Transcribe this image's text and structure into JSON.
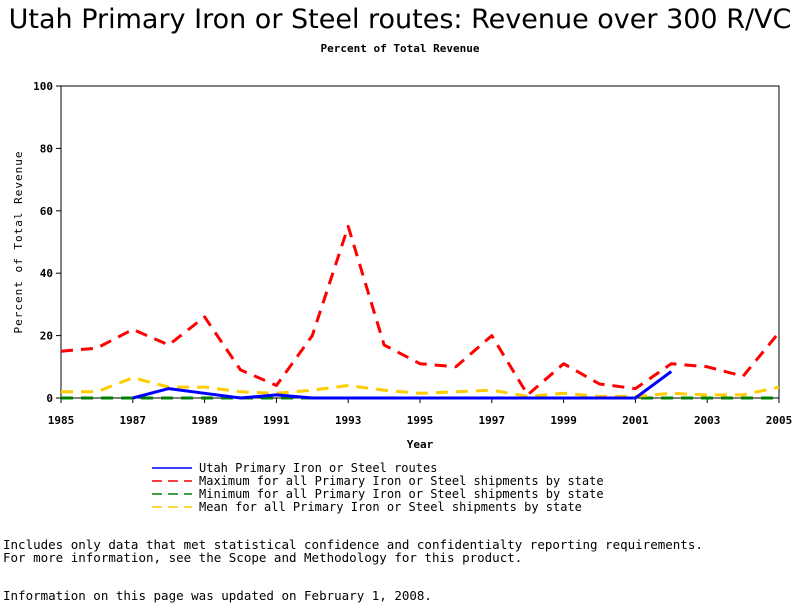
{
  "chart_data": {
    "type": "line",
    "title": "Utah Primary Iron or Steel routes: Revenue over 300 R/VC",
    "subtitle": "Percent of Total Revenue",
    "xlabel": "Year",
    "ylabel": "Percent of Total Revenue",
    "xlim": [
      1985,
      2005
    ],
    "ylim": [
      0,
      100
    ],
    "x_ticks": [
      "1985",
      "1987",
      "1989",
      "1991",
      "1993",
      "1995",
      "1997",
      "1999",
      "2001",
      "2003",
      "2005"
    ],
    "y_ticks": [
      "0",
      "20",
      "40",
      "60",
      "80",
      "100"
    ],
    "grid": false,
    "legend_position": "bottom",
    "series": [
      {
        "name": "Utah Primary Iron or Steel routes",
        "color": "#0000ff",
        "style": "solid",
        "x": [
          1987,
          1988,
          1989,
          1990,
          1991,
          1992,
          1993,
          1994,
          1995,
          1996,
          1997,
          1998,
          1999,
          2000,
          2001,
          2002
        ],
        "y": [
          0,
          3,
          1.5,
          0,
          1,
          0,
          0,
          0,
          0,
          0,
          0,
          0,
          0,
          0,
          0,
          8.5
        ]
      },
      {
        "name": "Maximum for all Primary Iron or Steel shipments by state",
        "color": "#ff0000",
        "style": "dashed",
        "x": [
          1985,
          1986,
          1987,
          1988,
          1989,
          1990,
          1991,
          1992,
          1993,
          1994,
          1995,
          1996,
          1997,
          1998,
          1999,
          2000,
          2001,
          2002,
          2003,
          2004,
          2005
        ],
        "y": [
          15,
          16,
          22,
          17,
          26,
          9,
          4,
          20,
          55,
          17,
          11,
          10,
          20,
          1,
          11,
          4.5,
          3,
          11,
          10,
          7,
          21
        ]
      },
      {
        "name": "Minimum for all Primary Iron or Steel shipments by state",
        "color": "#008000",
        "style": "dashed",
        "x": [
          1985,
          1986,
          1987,
          1988,
          1989,
          1990,
          1991,
          1992,
          1993,
          1994,
          1995,
          1996,
          1997,
          1998,
          1999,
          2000,
          2001,
          2002,
          2003,
          2004,
          2005
        ],
        "y": [
          0,
          0,
          0,
          0,
          0,
          0,
          0,
          0,
          0,
          0,
          0,
          0,
          0,
          0,
          0,
          0,
          0,
          0,
          0,
          0,
          0
        ]
      },
      {
        "name": "Mean for all Primary Iron or Steel shipments by state",
        "color": "#ffcc00",
        "style": "dashed",
        "x": [
          1985,
          1986,
          1987,
          1988,
          1989,
          1990,
          1991,
          1992,
          1993,
          1994,
          1995,
          1996,
          1997,
          1998,
          1999,
          2000,
          2001,
          2002,
          2003,
          2004,
          2005
        ],
        "y": [
          2,
          2,
          6.5,
          3.5,
          3.5,
          2,
          1.5,
          2.5,
          4,
          2.5,
          1.5,
          2,
          2.5,
          0.5,
          1.5,
          0.5,
          0.5,
          1.5,
          1,
          1,
          3.5
        ]
      }
    ]
  },
  "footer": {
    "line1": "Includes only data that met statistical confidence and confidentialty reporting requirements.",
    "line2": "For more information, see the Scope and Methodology for this product.",
    "updated": "Information on this page was updated on February 1, 2008."
  }
}
